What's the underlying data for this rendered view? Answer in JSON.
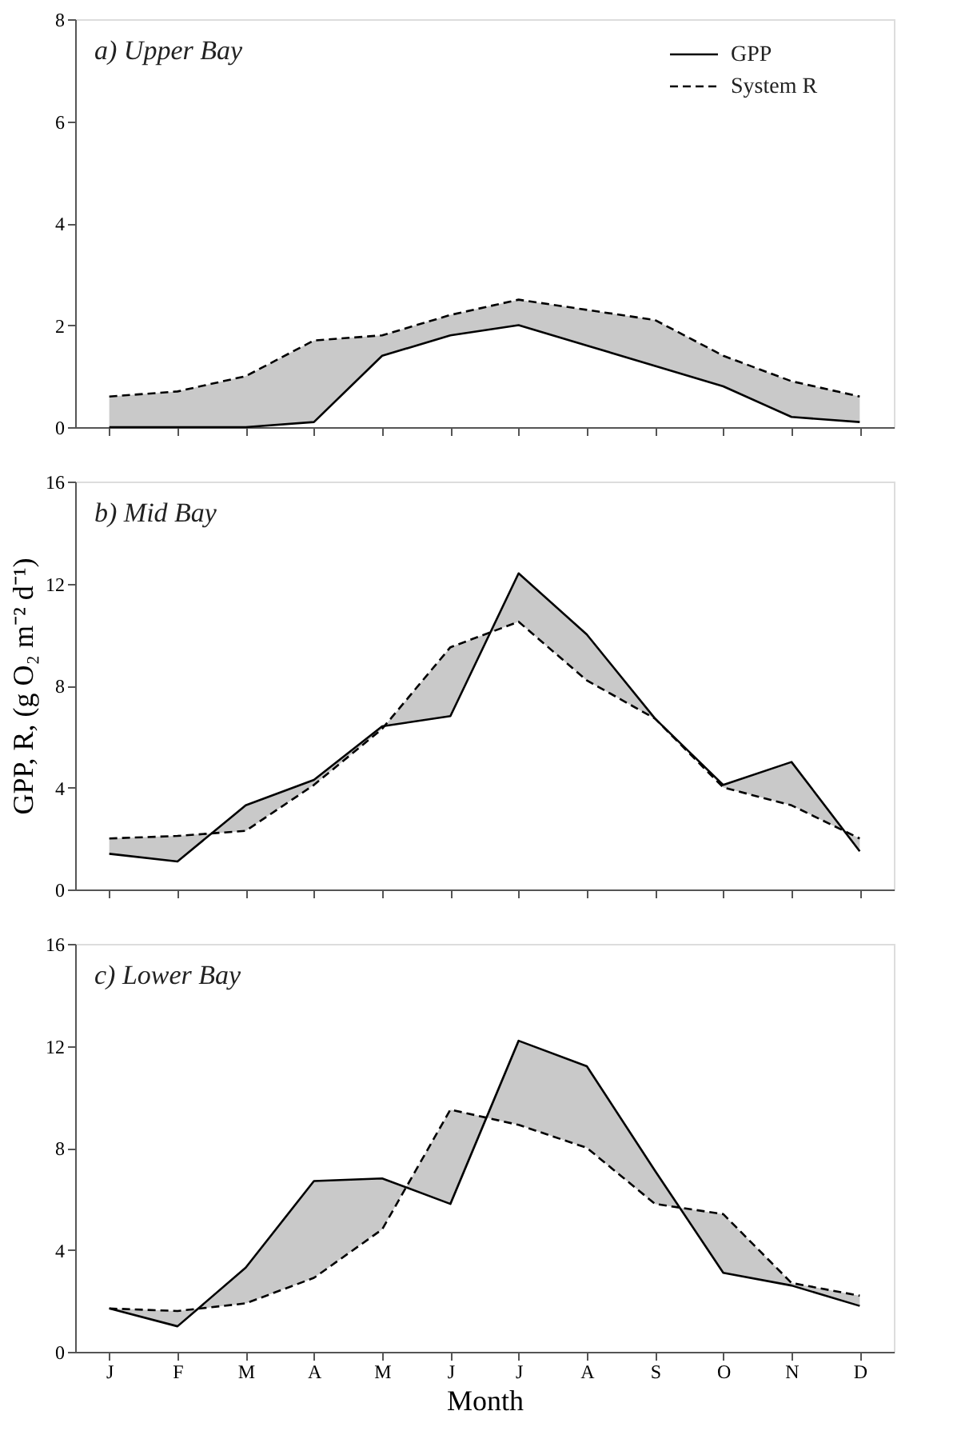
{
  "chart_data": [
    {
      "type": "line",
      "title": "a) Upper Bay",
      "categories": [
        null,
        null,
        null,
        null,
        null,
        null,
        null,
        null,
        null,
        null,
        null,
        null
      ],
      "series": [
        {
          "name": "GPP",
          "color": "#000000",
          "line_style": "solid",
          "values": [
            0.0,
            0.0,
            0.0,
            0.1,
            1.4,
            1.8,
            2.0,
            1.6,
            1.2,
            0.8,
            0.2,
            0.1
          ],
          "lower": [
            0.0,
            0.0,
            0.0,
            0.1,
            1.4,
            1.8,
            2.0,
            1.6,
            1.2,
            0.8,
            0.2,
            0.1
          ],
          "upper": [
            0.6,
            0.7,
            1.0,
            1.7,
            1.8,
            2.2,
            2.5,
            2.3,
            2.1,
            1.4,
            0.9,
            0.6
          ]
        },
        {
          "name": "System R",
          "color": "#000000",
          "line_style": "dashed",
          "values": [
            0.6,
            0.7,
            1.0,
            1.7,
            1.8,
            2.2,
            2.5,
            2.3,
            2.1,
            1.4,
            0.9,
            0.6
          ]
        }
      ],
      "ylim": [
        0,
        8
      ],
      "yticks": [
        0,
        2,
        4,
        6,
        8
      ],
      "legend": "top right"
    },
    {
      "type": "line",
      "title": "b) Mid Bay",
      "ylabel": "GPP, R, (g O₂ m⁻² d⁻¹)",
      "categories": [
        null,
        null,
        null,
        null,
        null,
        null,
        null,
        null,
        null,
        null,
        null,
        null
      ],
      "series": [
        {
          "color": "#000000",
          "line_style": "solid",
          "values": [
            1.4,
            1.1,
            3.3,
            4.3,
            6.4,
            6.8,
            12.4,
            10.0,
            6.7,
            4.1,
            5.0,
            1.5
          ],
          "lower": [
            1.4,
            1.1,
            3.3,
            4.3,
            6.4,
            6.8,
            12.4,
            10.0,
            6.7,
            4.1,
            5.0,
            1.5
          ],
          "upper": [
            2.0,
            2.1,
            2.3,
            4.1,
            6.3,
            9.5,
            10.5,
            8.2,
            6.7,
            4.0,
            3.3,
            2.0
          ]
        },
        {
          "color": "#000000",
          "line_style": "dashed",
          "values": [
            2.0,
            2.1,
            2.3,
            4.1,
            6.3,
            9.5,
            10.5,
            8.2,
            6.7,
            4.0,
            3.3,
            2.0
          ]
        }
      ],
      "ylim": [
        0,
        16
      ],
      "yticks": [
        0,
        4,
        8,
        12,
        16
      ]
    },
    {
      "type": "line",
      "title": "c) Lower Bay",
      "xlabel": "Month",
      "categories": [
        "J",
        "F",
        "M",
        "A",
        "M",
        "J",
        "J",
        "A",
        "S",
        "O",
        "N",
        "D"
      ],
      "series": [
        {
          "color": "#000000",
          "line_style": "solid",
          "values": [
            1.7,
            1.0,
            3.3,
            6.7,
            6.8,
            5.8,
            12.2,
            11.2,
            7.1,
            3.1,
            2.6,
            1.8
          ],
          "lower": [
            1.7,
            1.0,
            3.3,
            6.7,
            6.8,
            5.8,
            12.2,
            11.2,
            7.1,
            3.1,
            2.6,
            1.8
          ],
          "upper": [
            1.7,
            1.6,
            1.9,
            2.9,
            4.8,
            9.5,
            8.9,
            8.0,
            5.8,
            5.4,
            2.7,
            2.2
          ]
        },
        {
          "color": "#000000",
          "line_style": "dashed",
          "values": [
            1.7,
            1.6,
            1.9,
            2.9,
            4.8,
            9.5,
            8.9,
            8.0,
            5.8,
            5.4,
            2.7,
            2.2
          ]
        }
      ],
      "ylim": [
        0,
        16
      ],
      "yticks": [
        0,
        4,
        8,
        12,
        16
      ]
    }
  ]
}
